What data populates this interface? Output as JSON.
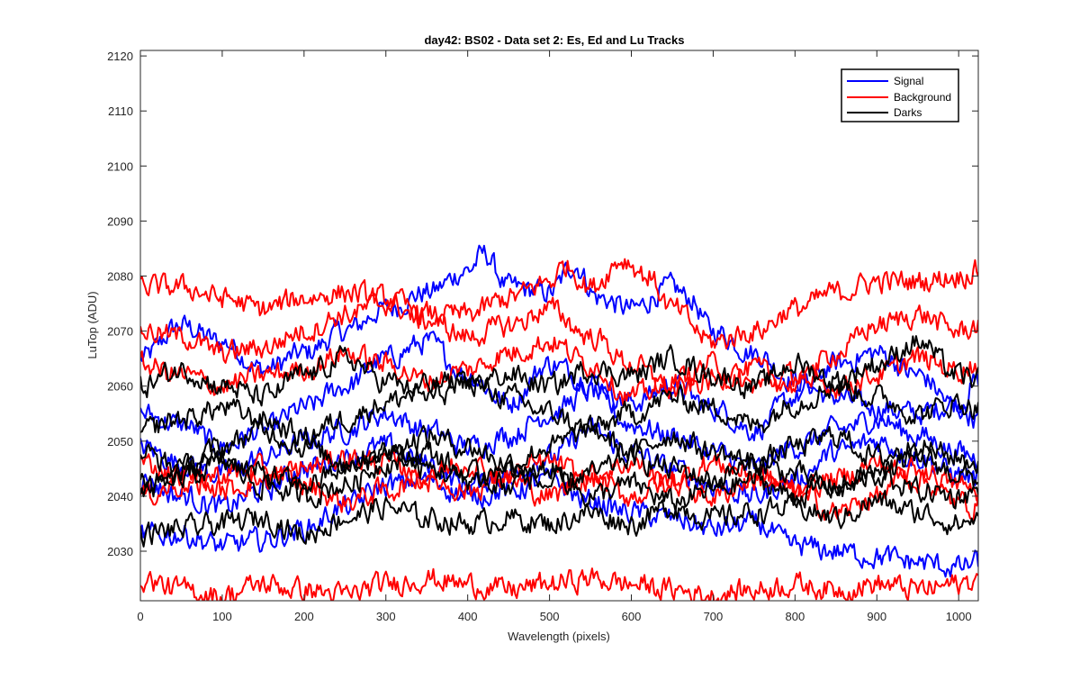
{
  "chart_data": {
    "type": "line",
    "title": "day42: BS02 - Data set 2: Es, Ed and Lu Tracks",
    "xlabel": "Wavelength (pixels)",
    "ylabel": "LuTop (ADU)",
    "xlim": [
      0,
      1024
    ],
    "ylim": [
      2021,
      2121
    ],
    "x_ticks": [
      0,
      100,
      200,
      300,
      400,
      500,
      600,
      700,
      800,
      900,
      1000
    ],
    "y_ticks": [
      2030,
      2040,
      2050,
      2060,
      2070,
      2080,
      2090,
      2100,
      2110,
      2120
    ],
    "grid": false,
    "legend_position": "top-right",
    "legend": [
      {
        "name": "Signal",
        "color": "#0000ff"
      },
      {
        "name": "Background",
        "color": "#ff0000"
      },
      {
        "name": "Darks",
        "color": "#000000"
      }
    ],
    "noise_amplitude": 1.3,
    "series": [
      {
        "group": "Signal",
        "color": "#0000ff",
        "x": [
          0,
          50,
          100,
          150,
          200,
          250,
          300,
          350,
          400,
          420,
          450,
          500,
          530,
          560,
          600,
          650,
          670,
          700,
          750,
          800,
          850,
          900,
          950,
          1000,
          1024
        ],
        "values": [
          2065,
          2071,
          2068,
          2063,
          2066,
          2070,
          2074,
          2077,
          2081,
          2084,
          2078,
          2077,
          2082,
          2076,
          2074,
          2078,
          2076,
          2070,
          2066,
          2061,
          2058,
          2056,
          2055,
          2057,
          2061
        ]
      },
      {
        "group": "Signal",
        "color": "#0000ff",
        "x": [
          0,
          50,
          100,
          150,
          200,
          250,
          300,
          350,
          400,
          450,
          500,
          550,
          600,
          650,
          700,
          750,
          800,
          850,
          900,
          950,
          1000,
          1024
        ],
        "values": [
          2055,
          2053,
          2049,
          2052,
          2056,
          2060,
          2065,
          2068,
          2062,
          2057,
          2064,
          2061,
          2057,
          2060,
          2056,
          2052,
          2058,
          2064,
          2066,
          2062,
          2056,
          2054
        ]
      },
      {
        "group": "Signal",
        "color": "#0000ff",
        "x": [
          0,
          50,
          100,
          150,
          200,
          250,
          300,
          350,
          400,
          450,
          500,
          550,
          600,
          650,
          700,
          750,
          800,
          850,
          900,
          950,
          1000,
          1024
        ],
        "values": [
          2049,
          2046,
          2044,
          2047,
          2050,
          2052,
          2055,
          2052,
          2049,
          2051,
          2055,
          2059,
          2053,
          2051,
          2048,
          2045,
          2049,
          2052,
          2054,
          2051,
          2048,
          2047
        ]
      },
      {
        "group": "Signal",
        "color": "#0000ff",
        "x": [
          0,
          50,
          100,
          150,
          200,
          250,
          300,
          350,
          400,
          450,
          500,
          550,
          600,
          650,
          700,
          750,
          800,
          850,
          900,
          950,
          1000,
          1024
        ],
        "values": [
          2043,
          2040,
          2038,
          2041,
          2045,
          2047,
          2049,
          2046,
          2042,
          2044,
          2047,
          2052,
          2048,
          2045,
          2042,
          2040,
          2043,
          2048,
          2050,
          2047,
          2044,
          2043
        ]
      },
      {
        "group": "Signal",
        "color": "#0000ff",
        "x": [
          0,
          50,
          100,
          150,
          200,
          250,
          300,
          350,
          400,
          450,
          500,
          550,
          600,
          650,
          700,
          750,
          800,
          850,
          900,
          950,
          1000,
          1024
        ],
        "values": [
          2033,
          2033,
          2031,
          2032,
          2034,
          2038,
          2042,
          2043,
          2040,
          2041,
          2043,
          2039,
          2037,
          2036,
          2034,
          2035,
          2031,
          2030,
          2029,
          2028,
          2027,
          2028
        ]
      },
      {
        "group": "Background",
        "color": "#ff0000",
        "x": [
          0,
          50,
          100,
          150,
          200,
          250,
          300,
          350,
          400,
          450,
          500,
          520,
          550,
          590,
          620,
          650,
          700,
          750,
          800,
          850,
          900,
          950,
          1000,
          1024
        ],
        "values": [
          2078,
          2078,
          2076,
          2074,
          2076,
          2077,
          2076,
          2073,
          2073,
          2076,
          2079,
          2082,
          2078,
          2083,
          2080,
          2074,
          2068,
          2070,
          2074,
          2077,
          2079,
          2079,
          2080,
          2081
        ]
      },
      {
        "group": "Background",
        "color": "#ff0000",
        "x": [
          0,
          50,
          100,
          150,
          200,
          250,
          300,
          350,
          400,
          450,
          500,
          550,
          600,
          650,
          700,
          750,
          800,
          850,
          900,
          950,
          1000,
          1024
        ],
        "values": [
          2070,
          2069,
          2066,
          2067,
          2070,
          2073,
          2075,
          2072,
          2069,
          2071,
          2074,
          2069,
          2064,
          2059,
          2061,
          2063,
          2060,
          2066,
          2071,
          2073,
          2070,
          2071
        ]
      },
      {
        "group": "Background",
        "color": "#ff0000",
        "x": [
          0,
          50,
          100,
          150,
          200,
          250,
          300,
          350,
          400,
          450,
          500,
          550,
          600,
          650,
          700,
          750,
          800,
          850,
          900,
          950,
          1000,
          1024
        ],
        "values": [
          2064,
          2062,
          2060,
          2062,
          2063,
          2066,
          2064,
          2061,
          2063,
          2066,
          2068,
          2064,
          2058,
          2061,
          2064,
          2060,
          2062,
          2060,
          2062,
          2065,
          2063,
          2064
        ]
      },
      {
        "group": "Background",
        "color": "#ff0000",
        "x": [
          0,
          50,
          100,
          150,
          200,
          250,
          300,
          350,
          400,
          450,
          500,
          550,
          600,
          650,
          700,
          750,
          800,
          850,
          900,
          950,
          1000,
          1024
        ],
        "values": [
          2040,
          2042,
          2044,
          2045,
          2042,
          2039,
          2041,
          2044,
          2046,
          2043,
          2040,
          2044,
          2046,
          2042,
          2040,
          2043,
          2041,
          2037,
          2040,
          2045,
          2042,
          2041
        ]
      },
      {
        "group": "Background",
        "color": "#ff0000",
        "x": [
          0,
          50,
          100,
          150,
          200,
          250,
          300,
          350,
          400,
          450,
          500,
          550,
          600,
          650,
          700,
          750,
          800,
          850,
          900,
          950,
          1000,
          1024
        ],
        "values": [
          2046,
          2044,
          2041,
          2043,
          2045,
          2047,
          2046,
          2043,
          2041,
          2044,
          2046,
          2043,
          2040,
          2043,
          2046,
          2044,
          2041,
          2043,
          2046,
          2043,
          2039,
          2038
        ]
      },
      {
        "group": "Background",
        "color": "#ff0000",
        "x": [
          0,
          50,
          100,
          150,
          200,
          250,
          300,
          350,
          400,
          450,
          500,
          550,
          600,
          650,
          700,
          750,
          800,
          850,
          900,
          950,
          1000,
          1024
        ],
        "values": [
          2025,
          2023,
          2022,
          2024,
          2023,
          2022,
          2024,
          2025,
          2024,
          2023,
          2024,
          2025,
          2024,
          2023,
          2022,
          2023,
          2024,
          2023,
          2024,
          2023,
          2024,
          2025
        ]
      },
      {
        "group": "Darks",
        "color": "#000000",
        "x": [
          0,
          50,
          100,
          150,
          200,
          250,
          300,
          350,
          400,
          450,
          500,
          550,
          600,
          650,
          700,
          750,
          800,
          850,
          900,
          950,
          1000,
          1024
        ],
        "values": [
          2060,
          2063,
          2060,
          2058,
          2062,
          2065,
          2061,
          2058,
          2060,
          2062,
          2060,
          2063,
          2062,
          2065,
          2062,
          2060,
          2064,
          2061,
          2064,
          2068,
          2062,
          2061
        ]
      },
      {
        "group": "Darks",
        "color": "#000000",
        "x": [
          0,
          50,
          100,
          150,
          200,
          250,
          300,
          350,
          400,
          450,
          500,
          550,
          600,
          650,
          700,
          750,
          800,
          850,
          900,
          950,
          1000,
          1024
        ],
        "values": [
          2052,
          2054,
          2056,
          2054,
          2051,
          2054,
          2057,
          2060,
          2061,
          2058,
          2055,
          2052,
          2055,
          2058,
          2056,
          2053,
          2057,
          2060,
          2058,
          2055,
          2057,
          2056
        ]
      },
      {
        "group": "Darks",
        "color": "#000000",
        "x": [
          0,
          50,
          100,
          150,
          200,
          250,
          300,
          350,
          400,
          450,
          500,
          550,
          600,
          650,
          700,
          750,
          800,
          850,
          900,
          950,
          1000,
          1024
        ],
        "values": [
          2048,
          2045,
          2049,
          2052,
          2049,
          2046,
          2048,
          2051,
          2049,
          2046,
          2049,
          2052,
          2048,
          2051,
          2048,
          2046,
          2049,
          2051,
          2047,
          2049,
          2047,
          2046
        ]
      },
      {
        "group": "Darks",
        "color": "#000000",
        "x": [
          0,
          50,
          100,
          150,
          200,
          250,
          300,
          350,
          400,
          450,
          500,
          550,
          600,
          650,
          700,
          750,
          800,
          850,
          900,
          950,
          1000,
          1024
        ],
        "values": [
          2042,
          2045,
          2047,
          2044,
          2042,
          2045,
          2048,
          2045,
          2043,
          2045,
          2042,
          2044,
          2047,
          2045,
          2043,
          2046,
          2044,
          2041,
          2044,
          2047,
          2044,
          2043
        ]
      },
      {
        "group": "Darks",
        "color": "#000000",
        "x": [
          0,
          50,
          100,
          150,
          200,
          250,
          300,
          350,
          400,
          450,
          500,
          550,
          600,
          650,
          700,
          750,
          800,
          850,
          900,
          950,
          1000,
          1024
        ],
        "values": [
          2041,
          2043,
          2046,
          2042,
          2040,
          2042,
          2046,
          2048,
          2044,
          2042,
          2045,
          2040,
          2042,
          2039,
          2041,
          2043,
          2040,
          2042,
          2044,
          2041,
          2040,
          2041
        ]
      },
      {
        "group": "Darks",
        "color": "#000000",
        "x": [
          0,
          50,
          100,
          150,
          200,
          250,
          300,
          350,
          400,
          450,
          500,
          550,
          600,
          650,
          700,
          750,
          800,
          850,
          900,
          950,
          1000,
          1024
        ],
        "values": [
          2033,
          2034,
          2035,
          2036,
          2033,
          2036,
          2038,
          2036,
          2035,
          2036,
          2035,
          2037,
          2035,
          2038,
          2036,
          2037,
          2038,
          2036,
          2039,
          2037,
          2035,
          2036
        ]
      }
    ]
  }
}
